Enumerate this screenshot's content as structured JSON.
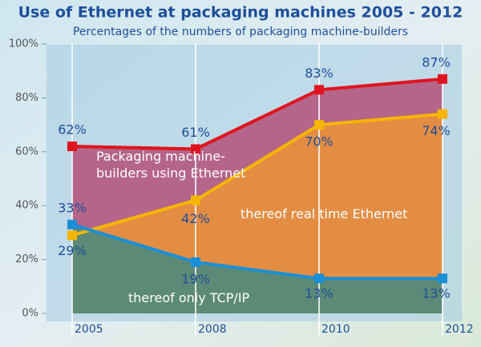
{
  "chart_data": {
    "type": "line",
    "title": "Use of Ethernet at packaging machines 2005 - 2012",
    "subtitle": "Percentages of the numbers of packaging machine-builders",
    "categories": [
      "2005",
      "2008",
      "2010",
      "2012"
    ],
    "series": [
      {
        "name": "Packaging machine-builders using Ethernet",
        "color": "#e0141e",
        "fill": "#b2587e",
        "values": [
          62,
          61,
          83,
          87
        ],
        "value_labels": [
          "62%",
          "61%",
          "83%",
          "87%"
        ]
      },
      {
        "name": "thereof real time Ethernet",
        "color": "#f7b500",
        "fill": "#e8913c",
        "values": [
          29,
          42,
          70,
          74
        ],
        "value_labels": [
          "29%",
          "42%",
          "70%",
          "74%"
        ]
      },
      {
        "name": "thereof only TCP/IP",
        "color": "#1a8fd6",
        "fill": "#4d8a7c",
        "values": [
          33,
          19,
          13,
          13
        ],
        "value_labels": [
          "33%",
          "19%",
          "13%",
          "13%"
        ]
      }
    ],
    "ylim": [
      0,
      100
    ],
    "yticks": [
      {
        "value": 0,
        "label": "0%"
      },
      {
        "value": 20,
        "label": "20%"
      },
      {
        "value": 40,
        "label": "40%"
      },
      {
        "value": 60,
        "label": "60%"
      },
      {
        "value": 80,
        "label": "80%"
      },
      {
        "value": 100,
        "label": "100%"
      }
    ]
  }
}
